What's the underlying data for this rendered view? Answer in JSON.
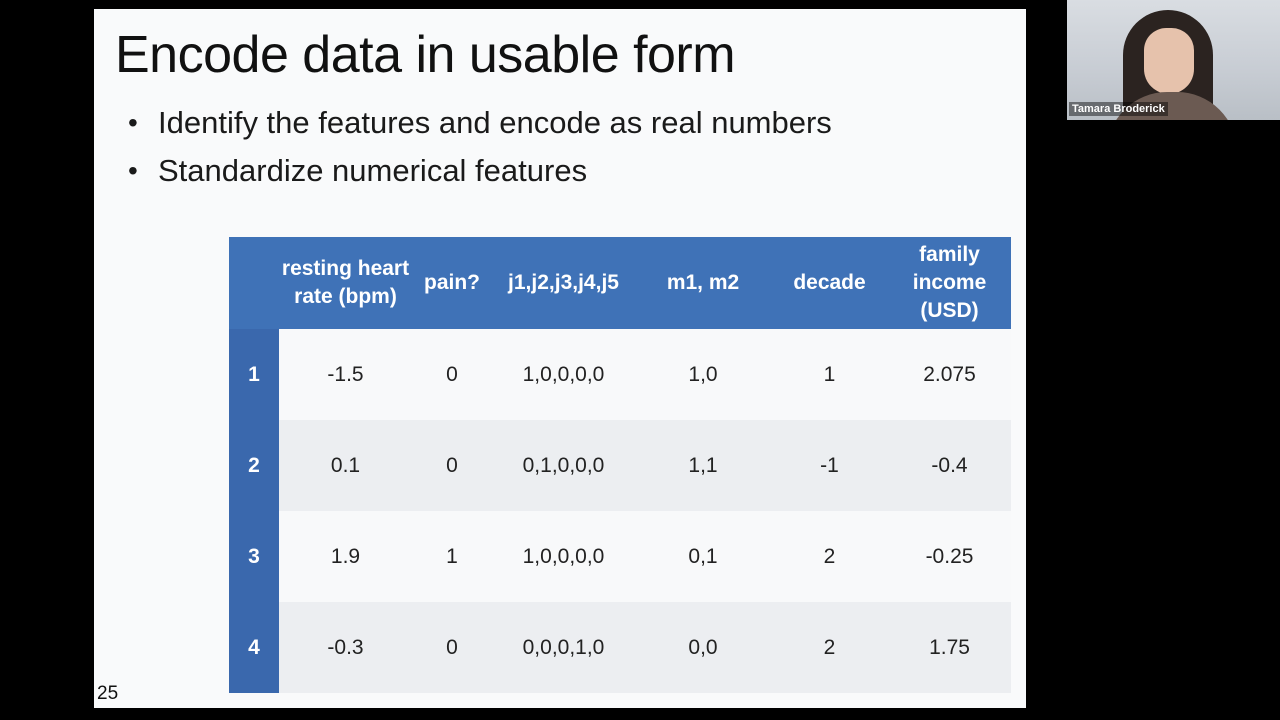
{
  "slide": {
    "title": "Encode data in usable form",
    "bullets": [
      "Identify the features and encode as real numbers",
      "Standardize numerical features"
    ],
    "bullet_glyph": "•",
    "slide_number": "25"
  },
  "table": {
    "headers": [
      "",
      "resting heart rate (bpm)",
      "pain?",
      "j1,j2,j3,j4,j5",
      "m1, m2",
      "decade",
      "family income (USD)"
    ],
    "rows": [
      [
        "1",
        "-1.5",
        "0",
        "1,0,0,0,0",
        "1,0",
        "1",
        "2.075"
      ],
      [
        "2",
        "0.1",
        "0",
        "0,1,0,0,0",
        "1,1",
        "-1",
        "-0.4"
      ],
      [
        "3",
        "1.9",
        "1",
        "1,0,0,0,0",
        "0,1",
        "2",
        "-0.25"
      ],
      [
        "4",
        "-0.3",
        "0",
        "0,0,0,1,0",
        "0,0",
        "2",
        "1.75"
      ]
    ]
  },
  "webcam": {
    "participant_name": "Tamara Broderick"
  },
  "colors": {
    "header_blue": "#3f72b7",
    "rowhead_blue": "#3a68ad",
    "background": "#000000"
  }
}
